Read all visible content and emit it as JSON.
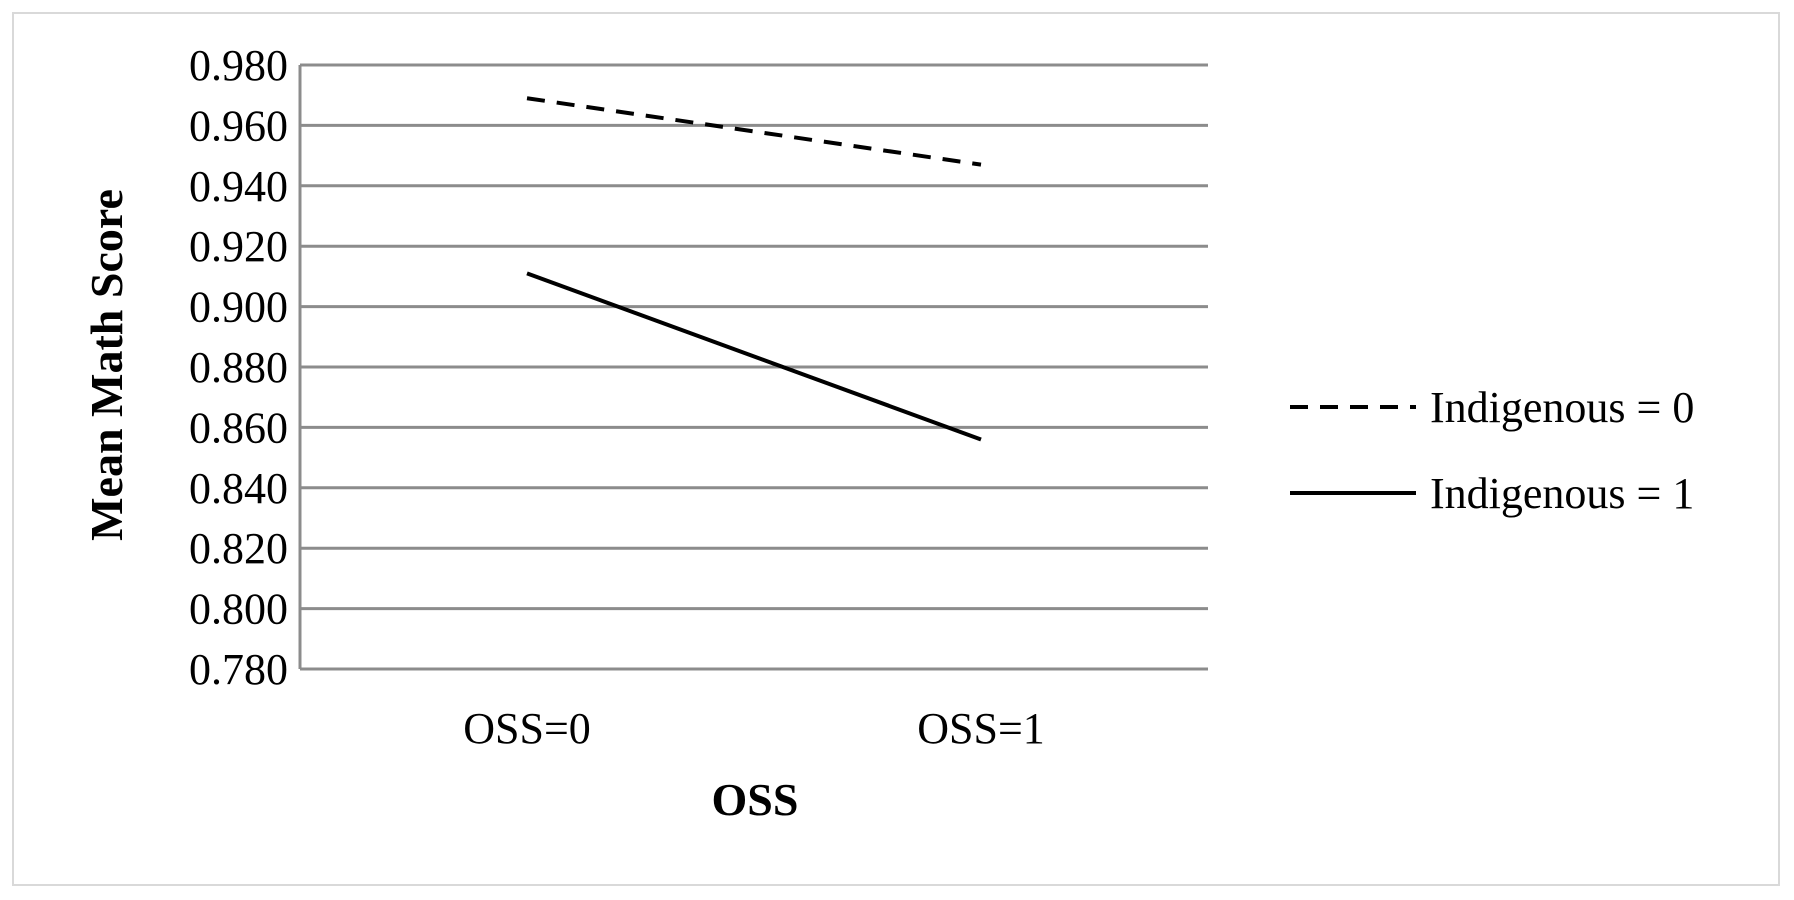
{
  "chart_data": {
    "type": "line",
    "title": "",
    "xlabel": "OSS",
    "ylabel": "Mean Math Score",
    "categories": [
      "OSS=0",
      "OSS=1"
    ],
    "ylim": [
      0.78,
      0.98
    ],
    "ytick_step": 0.02,
    "ytick_labels": [
      "0.980",
      "0.960",
      "0.940",
      "0.920",
      "0.900",
      "0.880",
      "0.860",
      "0.840",
      "0.820",
      "0.800",
      "0.780"
    ],
    "grid": true,
    "legend_position": "right",
    "series": [
      {
        "name": "Indigenous = 0",
        "values": [
          0.969,
          0.947
        ],
        "line_style": "dashed",
        "color": "#000000"
      },
      {
        "name": "Indigenous = 1",
        "values": [
          0.911,
          0.856
        ],
        "line_style": "solid",
        "color": "#000000"
      }
    ],
    "colors": {
      "grid": "#8c8c8c",
      "frame": "#d9d9d9"
    }
  }
}
